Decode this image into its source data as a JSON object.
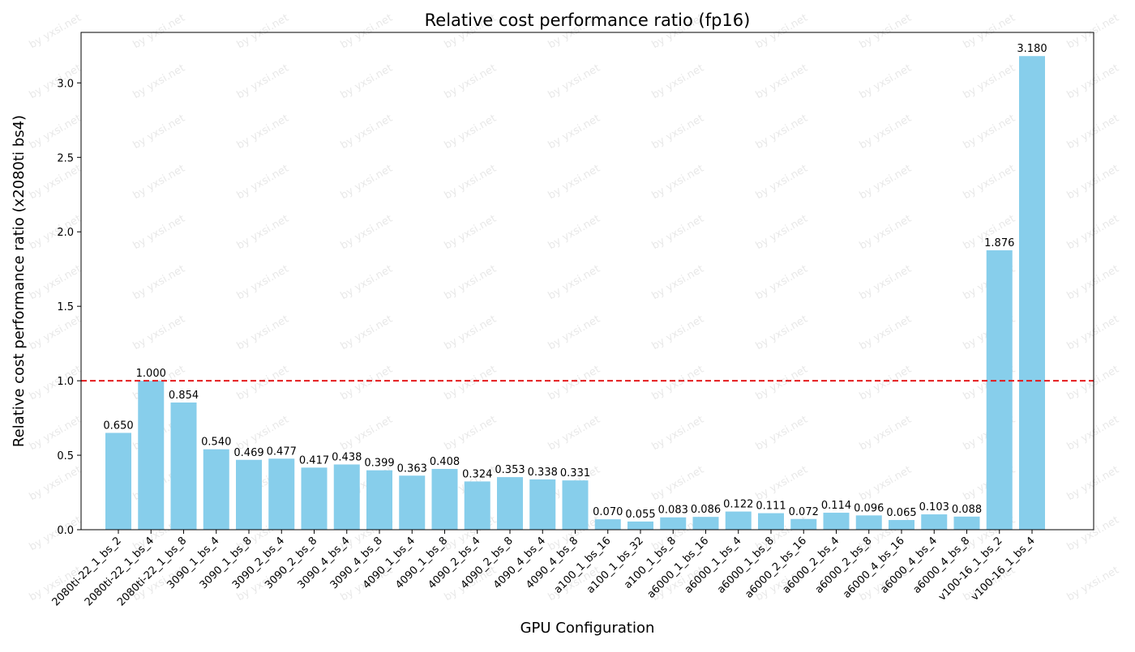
{
  "chart_data": {
    "type": "bar",
    "title": "Relative cost performance ratio (fp16)",
    "xlabel": "GPU Configuration",
    "ylabel": "Relative cost performance ratio (x2080ti bs4)",
    "ylim": [
      0,
      3.339
    ],
    "yticks": [
      0.0,
      0.5,
      1.0,
      1.5,
      2.0,
      2.5,
      3.0
    ],
    "ytick_labels": [
      "0.0",
      "0.5",
      "1.0",
      "1.5",
      "2.0",
      "2.5",
      "3.0"
    ],
    "grid": false,
    "reference_line": {
      "y": 1.0,
      "style": "dashed",
      "color": "#e41a1c"
    },
    "bar_color": "#87ceeb",
    "watermark": "by yxsi.net",
    "categories": [
      "2080ti-22_1_bs_2",
      "2080ti-22_1_bs_4",
      "2080ti-22_1_bs_8",
      "3090_1_bs_4",
      "3090_1_bs_8",
      "3090_2_bs_4",
      "3090_2_bs_8",
      "3090_4_bs_4",
      "3090_4_bs_8",
      "4090_1_bs_4",
      "4090_1_bs_8",
      "4090_2_bs_4",
      "4090_2_bs_8",
      "4090_4_bs_4",
      "4090_4_bs_8",
      "a100_1_bs_16",
      "a100_1_bs_32",
      "a100_1_bs_8",
      "a6000_1_bs_16",
      "a6000_1_bs_4",
      "a6000_1_bs_8",
      "a6000_2_bs_16",
      "a6000_2_bs_4",
      "a6000_2_bs_8",
      "a6000_4_bs_16",
      "a6000_4_bs_4",
      "a6000_4_bs_8",
      "v100-16_1_bs_2",
      "v100-16_1_bs_4"
    ],
    "values": [
      0.65,
      1.0,
      0.854,
      0.54,
      0.469,
      0.477,
      0.417,
      0.438,
      0.399,
      0.363,
      0.408,
      0.324,
      0.353,
      0.338,
      0.331,
      0.07,
      0.055,
      0.083,
      0.086,
      0.122,
      0.111,
      0.072,
      0.114,
      0.096,
      0.065,
      0.103,
      0.088,
      1.876,
      3.18
    ],
    "value_labels": [
      "0.650",
      "1.000",
      "0.854",
      "0.540",
      "0.469",
      "0.477",
      "0.417",
      "0.438",
      "0.399",
      "0.363",
      "0.408",
      "0.324",
      "0.353",
      "0.338",
      "0.331",
      "0.070",
      "0.055",
      "0.083",
      "0.086",
      "0.122",
      "0.111",
      "0.072",
      "0.114",
      "0.096",
      "0.065",
      "0.103",
      "0.088",
      "1.876",
      "3.180"
    ]
  }
}
